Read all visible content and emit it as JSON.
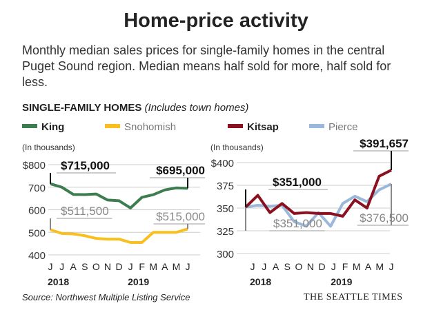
{
  "title": "Home-price activity",
  "subtitle": "Monthly median sales prices for single-family homes in the central Puget Sound region. Median means half sold for more, half sold for less.",
  "section_label": "SINGLE-FAMILY HOMES",
  "section_note": "(Includes town homes)",
  "source": "Source: Northwest Multiple Listing Service",
  "credit": "THE SEATTLE TIMES",
  "colors": {
    "King": "#3e7d4f",
    "Snohomish": "#f9bf1e",
    "Kitsap": "#8b1121",
    "Pierce": "#9ab8da"
  },
  "chart_data": [
    {
      "type": "line",
      "ylabel": "(In thousands)",
      "ylim": [
        400,
        800
      ],
      "yticks": [
        "$800",
        "700",
        "600",
        "500",
        "400"
      ],
      "categories": [
        "J",
        "J",
        "A",
        "S",
        "O",
        "N",
        "D",
        "J",
        "F",
        "M",
        "A",
        "M",
        "J"
      ],
      "years": [
        "2018",
        "2019"
      ],
      "grid": true,
      "series": [
        {
          "name": "King",
          "values": [
            715,
            700,
            668,
            667,
            670,
            643,
            640,
            608,
            655,
            667,
            688,
            697,
            695
          ]
        },
        {
          "name": "Snohomish",
          "values": [
            511.5,
            495,
            493,
            485,
            473,
            470,
            470,
            455,
            455,
            500,
            500,
            500,
            515
          ]
        }
      ],
      "annotations": [
        "$715,000",
        "$695,000",
        "$511,500",
        "$515,000"
      ]
    },
    {
      "type": "line",
      "ylabel": "(In thousands)",
      "ylim": [
        300,
        400
      ],
      "yticks": [
        "$400",
        "375",
        "350",
        "325",
        "300"
      ],
      "categories": [
        "J",
        "J",
        "A",
        "S",
        "O",
        "N",
        "D",
        "J",
        "F",
        "M",
        "A",
        "M",
        "J"
      ],
      "years": [
        "2018",
        "2019"
      ],
      "grid": true,
      "series": [
        {
          "name": "Kitsap",
          "values": [
            351,
            364,
            345,
            355,
            344,
            345,
            344,
            344,
            341,
            359,
            350,
            385,
            391.657
          ]
        },
        {
          "name": "Pierce",
          "values": [
            351,
            353,
            352,
            353,
            335,
            330,
            345,
            330,
            355,
            363,
            357,
            370,
            376.5
          ]
        }
      ],
      "annotations": [
        "$351,000",
        "$391,657",
        "$351,000",
        "$376,500"
      ]
    }
  ]
}
